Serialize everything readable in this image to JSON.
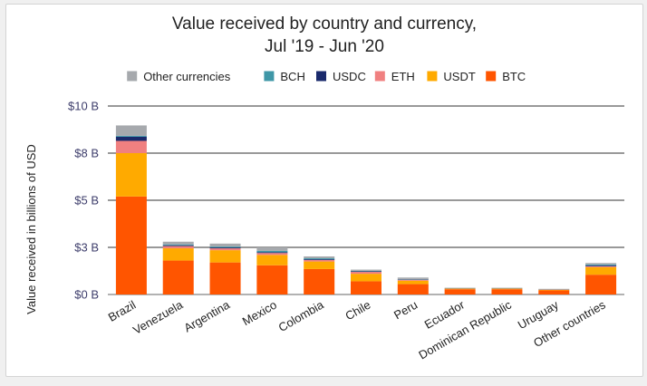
{
  "chart_data": {
    "type": "bar",
    "stacked": true,
    "title": "Value received by country and currency,",
    "subtitle": "Jul '19 - Jun '20",
    "xlabel": "",
    "ylabel": "Value received in billions of USD",
    "ylim": [
      0,
      10
    ],
    "yticks": [
      {
        "value": 0,
        "label": "$0 B"
      },
      {
        "value": 2.5,
        "label": "$3 B"
      },
      {
        "value": 5,
        "label": "$5 B"
      },
      {
        "value": 7.5,
        "label": "$8 B"
      },
      {
        "value": 10,
        "label": "$10 B"
      }
    ],
    "grid": true,
    "legend_position": "top",
    "categories": [
      "Brazil",
      "Venezuela",
      "Argentina",
      "Mexico",
      "Colombia",
      "Chile",
      "Peru",
      "Ecuador",
      "Dominican Republic",
      "Uruguay",
      "Other countries"
    ],
    "series": [
      {
        "name": "BTC",
        "color": "#ff5500",
        "values": [
          5.2,
          1.8,
          1.7,
          1.55,
          1.35,
          0.7,
          0.55,
          0.28,
          0.28,
          0.22,
          1.05
        ]
      },
      {
        "name": "USDT",
        "color": "#ffaa00",
        "values": [
          2.3,
          0.65,
          0.65,
          0.55,
          0.4,
          0.4,
          0.18,
          0.03,
          0.03,
          0.03,
          0.4
        ]
      },
      {
        "name": "ETH",
        "color": "#f08080",
        "values": [
          0.65,
          0.12,
          0.1,
          0.1,
          0.08,
          0.1,
          0.05,
          0.01,
          0.01,
          0.01,
          0.05
        ]
      },
      {
        "name": "USDC",
        "color": "#1a2a6c",
        "values": [
          0.22,
          0.04,
          0.04,
          0.04,
          0.04,
          0.03,
          0.02,
          0.01,
          0.01,
          0.01,
          0.05
        ]
      },
      {
        "name": "BCH",
        "color": "#3f97a7",
        "values": [
          0.05,
          0.05,
          0.05,
          0.08,
          0.05,
          0.03,
          0.02,
          0.01,
          0.01,
          0.01,
          0.05
        ]
      },
      {
        "name": "Other currencies",
        "color": "#a6a9ad",
        "values": [
          0.55,
          0.14,
          0.16,
          0.18,
          0.1,
          0.06,
          0.08,
          0.02,
          0.02,
          0.02,
          0.07
        ]
      }
    ],
    "legend_order": [
      "Other currencies",
      "BCH",
      "USDC",
      "ETH",
      "USDT",
      "BTC"
    ]
  }
}
